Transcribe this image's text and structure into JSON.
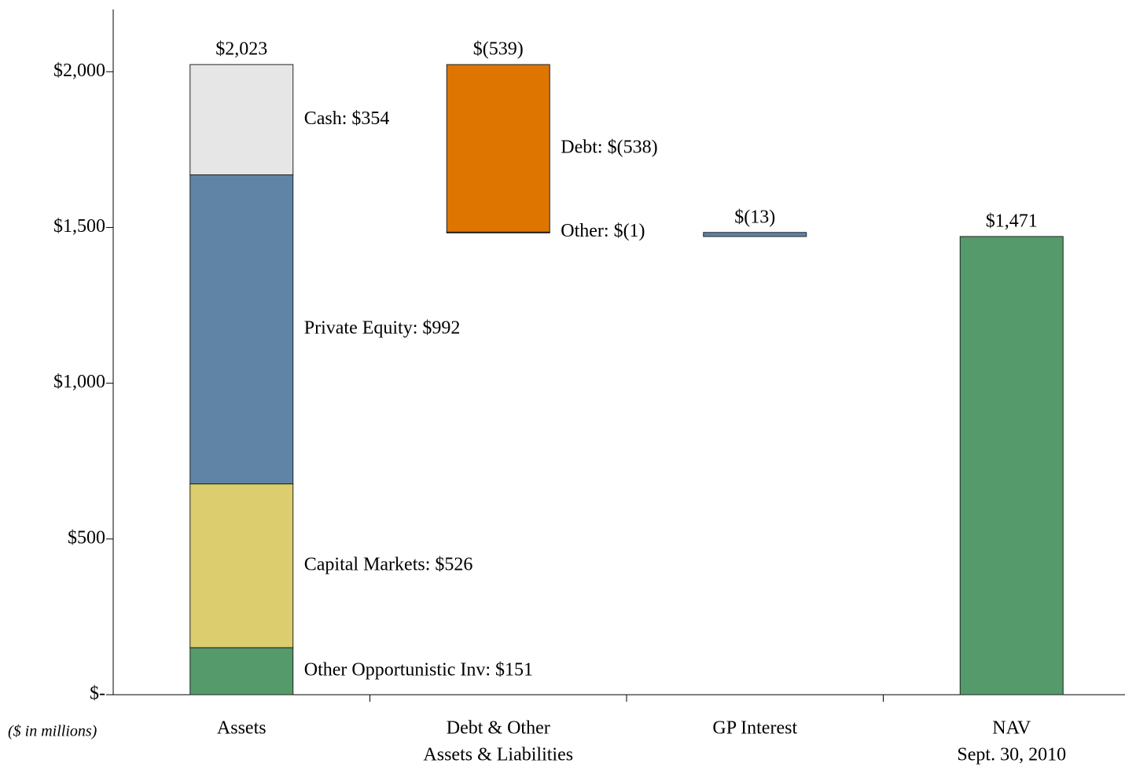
{
  "chart_data": {
    "type": "waterfall",
    "note": "($ in millions)",
    "categories": [
      [
        "Assets"
      ],
      [
        "Debt & Other",
        "Assets & Liabilities"
      ],
      [
        "GP Interest"
      ],
      [
        "NAV",
        "Sept. 30, 2010"
      ]
    ],
    "stacks": [
      {
        "total": 2023,
        "total_label": "$2,023",
        "segments": [
          {
            "value": 151,
            "color": "#559a6a",
            "label": "Other Opportunistic Inv: $151"
          },
          {
            "value": 526,
            "color": "#dccd6e",
            "label": "Capital Markets: $526"
          },
          {
            "value": 992,
            "color": "#5f84a6",
            "label": "Private Equity: $992"
          },
          {
            "value": 354,
            "color": "#e6e6e6",
            "label": "Cash: $354"
          }
        ]
      },
      {
        "total": -539,
        "total_label": "$(539)",
        "segments": [
          {
            "value": -538,
            "color": "#dd7500",
            "label": "Debt: $(538)"
          },
          {
            "value": -1,
            "color": "#dccd6e",
            "label": "Other: $(1)"
          }
        ]
      },
      {
        "total": -13,
        "total_label": "$(13)",
        "segments": [
          {
            "value": -13,
            "color": "#5f84a6"
          }
        ]
      },
      {
        "total": 1471,
        "total_label": "$1,471",
        "is_total": true,
        "segments": [
          {
            "value": 1471,
            "color": "#559a6a"
          }
        ]
      }
    ],
    "ylim": [
      0,
      2200
    ],
    "yticks": [
      {
        "value": 0,
        "label": "$-"
      },
      {
        "value": 500,
        "label": "$500"
      },
      {
        "value": 1000,
        "label": "$1,000"
      },
      {
        "value": 1500,
        "label": "$1,500"
      },
      {
        "value": 2000,
        "label": "$2,000"
      }
    ]
  }
}
